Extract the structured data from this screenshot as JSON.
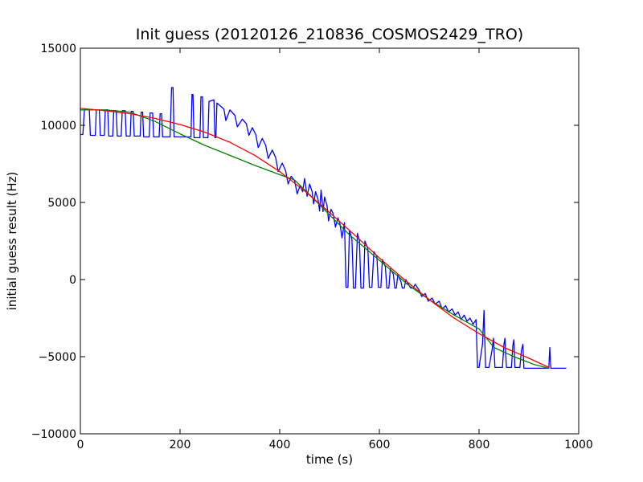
{
  "chart_data": {
    "type": "line",
    "title": "Init guess (20120126_210836_COSMOS2429_TRO)",
    "xlabel": "time (s)",
    "ylabel": "initial guess result (Hz)",
    "xlim": [
      0,
      1000
    ],
    "ylim": [
      -10000,
      15000
    ],
    "xticks": [
      0,
      200,
      400,
      600,
      800,
      1000
    ],
    "yticks": [
      -10000,
      -5000,
      0,
      5000,
      10000,
      15000
    ],
    "grid": false,
    "series": [
      {
        "color": "#0000ff",
        "points": [
          [
            0,
            9400
          ],
          [
            5,
            9400
          ],
          [
            8,
            11000
          ],
          [
            18,
            11000
          ],
          [
            20,
            9350
          ],
          [
            30,
            9350
          ],
          [
            32,
            11000
          ],
          [
            38,
            11000
          ],
          [
            40,
            9350
          ],
          [
            48,
            9350
          ],
          [
            50,
            11000
          ],
          [
            55,
            11000
          ],
          [
            57,
            9300
          ],
          [
            65,
            9300
          ],
          [
            67,
            10950
          ],
          [
            72,
            10950
          ],
          [
            74,
            9300
          ],
          [
            82,
            9300
          ],
          [
            84,
            10950
          ],
          [
            90,
            10950
          ],
          [
            92,
            9300
          ],
          [
            100,
            9300
          ],
          [
            102,
            10900
          ],
          [
            106,
            10900
          ],
          [
            108,
            9300
          ],
          [
            120,
            9300
          ],
          [
            122,
            10850
          ],
          [
            125,
            10850
          ],
          [
            127,
            9250
          ],
          [
            138,
            9250
          ],
          [
            140,
            10800
          ],
          [
            145,
            10800
          ],
          [
            147,
            9250
          ],
          [
            158,
            9250
          ],
          [
            160,
            10750
          ],
          [
            163,
            10750
          ],
          [
            165,
            9250
          ],
          [
            180,
            9250
          ],
          [
            183,
            12450
          ],
          [
            186,
            12450
          ],
          [
            188,
            9250
          ],
          [
            222,
            9250
          ],
          [
            224,
            12000
          ],
          [
            226,
            12000
          ],
          [
            228,
            9200
          ],
          [
            240,
            9200
          ],
          [
            242,
            11850
          ],
          [
            245,
            11850
          ],
          [
            247,
            9200
          ],
          [
            256,
            9200
          ],
          [
            258,
            11550
          ],
          [
            268,
            11650
          ],
          [
            270,
            9200
          ],
          [
            272,
            9200
          ],
          [
            274,
            11450
          ],
          [
            288,
            11050
          ],
          [
            292,
            10300
          ],
          [
            300,
            11000
          ],
          [
            310,
            10650
          ],
          [
            315,
            9900
          ],
          [
            325,
            10400
          ],
          [
            333,
            10100
          ],
          [
            338,
            9350
          ],
          [
            345,
            9850
          ],
          [
            352,
            9400
          ],
          [
            357,
            8550
          ],
          [
            365,
            9150
          ],
          [
            372,
            8700
          ],
          [
            377,
            7850
          ],
          [
            385,
            8400
          ],
          [
            392,
            7900
          ],
          [
            397,
            7000
          ],
          [
            405,
            7550
          ],
          [
            412,
            7050
          ],
          [
            417,
            6200
          ],
          [
            423,
            6700
          ],
          [
            430,
            6400
          ],
          [
            435,
            5550
          ],
          [
            441,
            6100
          ],
          [
            446,
            5700
          ],
          [
            450,
            6550
          ],
          [
            455,
            5400
          ],
          [
            460,
            6200
          ],
          [
            465,
            5700
          ],
          [
            468,
            4900
          ],
          [
            472,
            5700
          ],
          [
            477,
            5200
          ],
          [
            480,
            4450
          ],
          [
            483,
            5800
          ],
          [
            487,
            4400
          ],
          [
            490,
            5350
          ],
          [
            495,
            4800
          ],
          [
            498,
            3800
          ],
          [
            503,
            4550
          ],
          [
            507,
            4300
          ],
          [
            512,
            3400
          ],
          [
            517,
            4000
          ],
          [
            521,
            3600
          ],
          [
            525,
            2700
          ],
          [
            530,
            3700
          ],
          [
            533,
            -500
          ],
          [
            537,
            -500
          ],
          [
            540,
            3200
          ],
          [
            545,
            2600
          ],
          [
            548,
            -550
          ],
          [
            552,
            -550
          ],
          [
            556,
            3000
          ],
          [
            560,
            2500
          ],
          [
            563,
            -550
          ],
          [
            568,
            -550
          ],
          [
            571,
            2500
          ],
          [
            577,
            2000
          ],
          [
            580,
            -500
          ],
          [
            585,
            -500
          ],
          [
            589,
            1800
          ],
          [
            595,
            1500
          ],
          [
            598,
            -500
          ],
          [
            603,
            -500
          ],
          [
            606,
            1300
          ],
          [
            612,
            850
          ],
          [
            615,
            -550
          ],
          [
            619,
            -550
          ],
          [
            622,
            700
          ],
          [
            628,
            350
          ],
          [
            631,
            -550
          ],
          [
            634,
            -550
          ],
          [
            637,
            300
          ],
          [
            643,
            -100
          ],
          [
            646,
            -550
          ],
          [
            650,
            -550
          ],
          [
            653,
            0
          ],
          [
            660,
            -400
          ],
          [
            663,
            -550
          ],
          [
            668,
            -550
          ],
          [
            672,
            -300
          ],
          [
            680,
            -700
          ],
          [
            685,
            -1100
          ],
          [
            692,
            -900
          ],
          [
            698,
            -1400
          ],
          [
            706,
            -1200
          ],
          [
            712,
            -1600
          ],
          [
            720,
            -1400
          ],
          [
            726,
            -1900
          ],
          [
            733,
            -1700
          ],
          [
            739,
            -2100
          ],
          [
            746,
            -1900
          ],
          [
            752,
            -2300
          ],
          [
            758,
            -2100
          ],
          [
            764,
            -2600
          ],
          [
            770,
            -2300
          ],
          [
            776,
            -2700
          ],
          [
            782,
            -2500
          ],
          [
            788,
            -2900
          ],
          [
            794,
            -2600
          ],
          [
            797,
            -5700
          ],
          [
            800,
            -5700
          ],
          [
            807,
            -4200
          ],
          [
            810,
            -2000
          ],
          [
            813,
            -5700
          ],
          [
            820,
            -5700
          ],
          [
            826,
            -4600
          ],
          [
            829,
            -3800
          ],
          [
            832,
            -5700
          ],
          [
            847,
            -5700
          ],
          [
            850,
            -4200
          ],
          [
            852,
            -3800
          ],
          [
            855,
            -5700
          ],
          [
            865,
            -5700
          ],
          [
            868,
            -4200
          ],
          [
            870,
            -3900
          ],
          [
            872,
            -5700
          ],
          [
            882,
            -5700
          ],
          [
            885,
            -4600
          ],
          [
            888,
            -4200
          ],
          [
            890,
            -5750
          ],
          [
            940,
            -5750
          ],
          [
            942,
            -4400
          ],
          [
            944,
            -5750
          ],
          [
            975,
            -5750
          ]
        ]
      },
      {
        "color": "#008000",
        "points": [
          [
            0,
            11000
          ],
          [
            50,
            11000
          ],
          [
            100,
            10850
          ],
          [
            150,
            10250
          ],
          [
            200,
            9450
          ],
          [
            250,
            8700
          ],
          [
            300,
            8050
          ],
          [
            350,
            7400
          ],
          [
            400,
            6800
          ],
          [
            430,
            6450
          ],
          [
            460,
            5500
          ],
          [
            500,
            4200
          ],
          [
            540,
            2900
          ],
          [
            580,
            1800
          ],
          [
            620,
            700
          ],
          [
            660,
            -400
          ],
          [
            700,
            -1300
          ],
          [
            750,
            -2300
          ],
          [
            800,
            -3200
          ],
          [
            830,
            -4400
          ],
          [
            870,
            -5000
          ],
          [
            910,
            -5500
          ],
          [
            940,
            -5750
          ]
        ]
      },
      {
        "color": "#ff0000",
        "points": [
          [
            0,
            11100
          ],
          [
            50,
            10950
          ],
          [
            100,
            10750
          ],
          [
            150,
            10450
          ],
          [
            200,
            10050
          ],
          [
            250,
            9550
          ],
          [
            300,
            8900
          ],
          [
            350,
            8050
          ],
          [
            400,
            7000
          ],
          [
            450,
            5750
          ],
          [
            500,
            4350
          ],
          [
            550,
            2900
          ],
          [
            600,
            1400
          ],
          [
            650,
            0
          ],
          [
            700,
            -1300
          ],
          [
            750,
            -2500
          ],
          [
            800,
            -3500
          ],
          [
            850,
            -4400
          ],
          [
            900,
            -5100
          ],
          [
            940,
            -5700
          ]
        ]
      }
    ]
  }
}
